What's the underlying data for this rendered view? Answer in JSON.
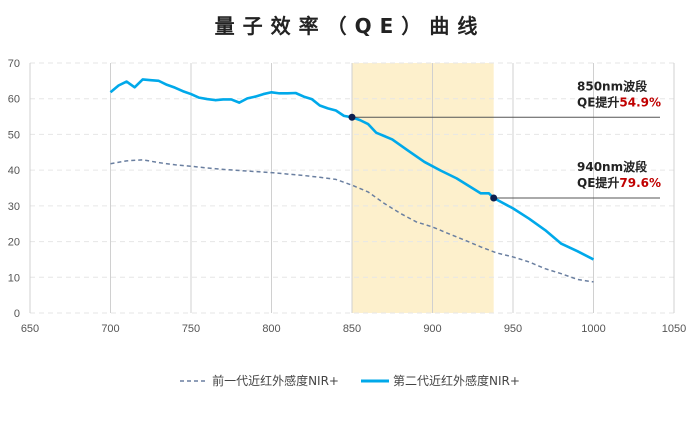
{
  "chart_data": {
    "type": "line",
    "title": "量子效率（QE）曲线",
    "xlabel": "",
    "ylabel": "",
    "xlim": [
      650,
      1050
    ],
    "ylim": [
      0,
      70
    ],
    "xticks": [
      650,
      700,
      750,
      800,
      850,
      900,
      950,
      1000,
      1050
    ],
    "yticks": [
      0,
      10,
      20,
      30,
      40,
      50,
      60,
      70
    ],
    "grid": {
      "vertical_solid": true,
      "horizontal_dashed": true
    },
    "legend_position": "bottom",
    "highlight_band": {
      "x": [
        850,
        938
      ],
      "color": "#fdf0cc"
    },
    "series": [
      {
        "name": "前一代近红外感度NIR+",
        "style": "dashed",
        "color": "#6a7fa0",
        "x": [
          700,
          710,
          720,
          730,
          740,
          750,
          760,
          770,
          780,
          790,
          800,
          810,
          820,
          830,
          840,
          850,
          860,
          870,
          880,
          890,
          900,
          910,
          920,
          930,
          940,
          950,
          960,
          970,
          980,
          990,
          1000
        ],
        "y": [
          41.8,
          42.6,
          42.9,
          42.1,
          41.5,
          41.1,
          40.6,
          40.2,
          39.9,
          39.6,
          39.3,
          38.9,
          38.5,
          38.0,
          37.4,
          35.8,
          33.9,
          30.7,
          27.9,
          25.5,
          24.1,
          22.2,
          20.4,
          18.5,
          16.8,
          15.7,
          14.3,
          12.4,
          11.0,
          9.4,
          8.7
        ]
      },
      {
        "name": "第二代近红外感度NIR+",
        "style": "solid",
        "color": "#00a9ea",
        "x": [
          700,
          705,
          710,
          715,
          720,
          725,
          730,
          735,
          740,
          745,
          750,
          755,
          760,
          765,
          770,
          775,
          780,
          785,
          790,
          795,
          800,
          805,
          810,
          815,
          820,
          825,
          830,
          835,
          840,
          845,
          850,
          855,
          860,
          865,
          875,
          885,
          895,
          905,
          915,
          920,
          930,
          935,
          938,
          950,
          960,
          970,
          980,
          990,
          1000
        ],
        "y": [
          61.8,
          63.7,
          64.8,
          63.2,
          65.4,
          65.2,
          65.0,
          63.9,
          63.1,
          62.1,
          61.3,
          60.3,
          59.9,
          59.6,
          59.8,
          59.8,
          58.9,
          60.1,
          60.6,
          61.3,
          61.8,
          61.5,
          61.5,
          61.6,
          60.6,
          59.9,
          58.1,
          57.3,
          56.7,
          55.2,
          54.8,
          54.0,
          52.9,
          50.5,
          48.6,
          45.4,
          42.3,
          39.9,
          37.7,
          36.3,
          33.5,
          33.5,
          32.2,
          29.3,
          26.4,
          23.2,
          19.4,
          17.3,
          15.0
        ]
      }
    ],
    "annotations": [
      {
        "x": 850,
        "y": 54.8,
        "line1": "850nm波段",
        "prefix": "QE提升",
        "value": "54.9%"
      },
      {
        "x": 938,
        "y": 32.2,
        "line1": "940nm波段",
        "prefix": "QE提升",
        "value": "79.6%"
      }
    ],
    "colors": {
      "highlight_value": "#c00000",
      "marker": "#0d1f4f",
      "leader_line": "#555555"
    }
  }
}
